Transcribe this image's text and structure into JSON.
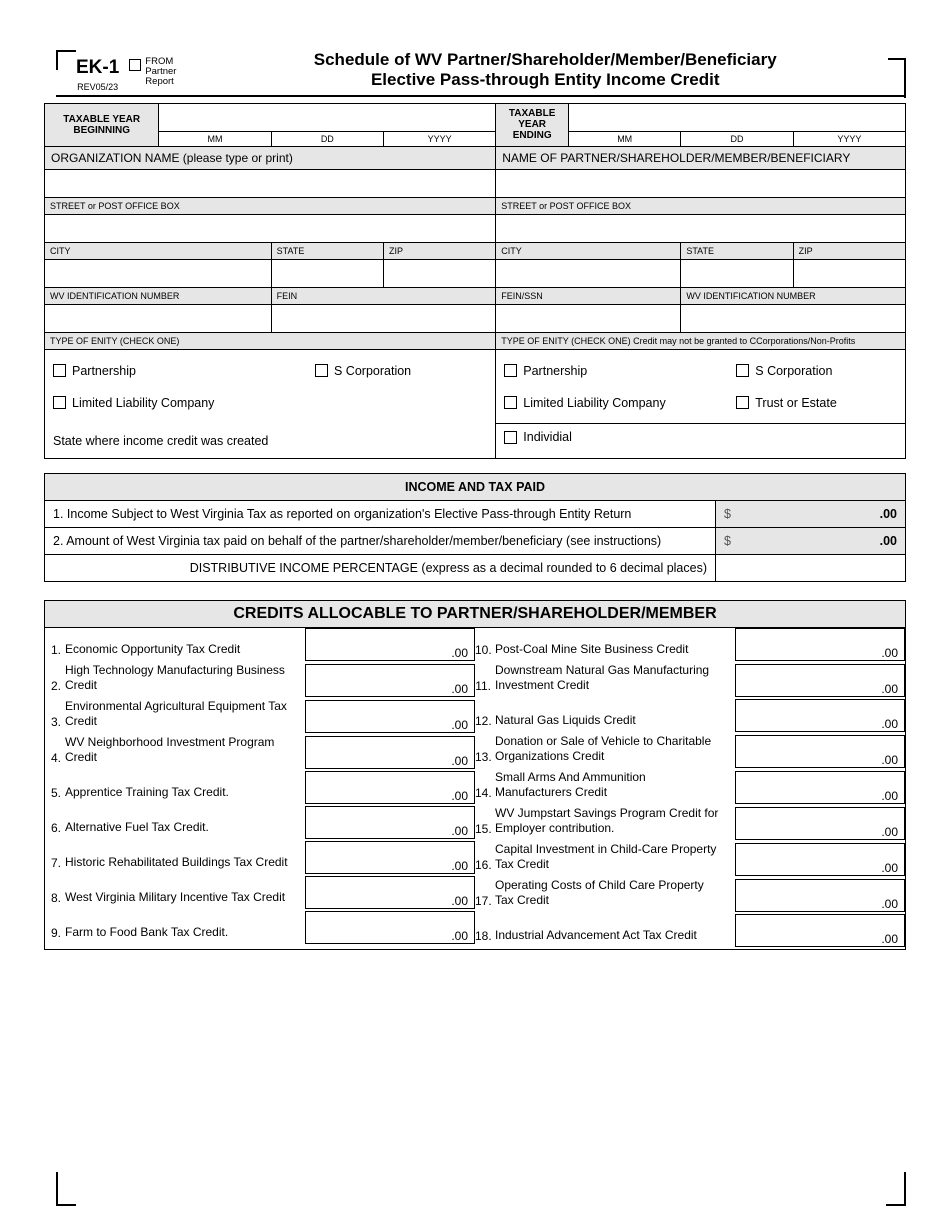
{
  "form": {
    "code": "EK-1",
    "rev": "REV05/23",
    "from": "FROM",
    "partner": "Partner",
    "report": "Report",
    "title1": "Schedule of WV Partner/Shareholder/Member/Beneficiary",
    "title2": "Elective Pass-through Entity Income Credit"
  },
  "datehdr": {
    "begin": "TAXABLE YEAR BEGINNING",
    "end": "TAXABLE YEAR ENDING",
    "mm": "MM",
    "dd": "DD",
    "yyyy": "YYYY"
  },
  "left": {
    "org": "ORGANIZATION NAME (please type or print)",
    "street": "STREET or POST OFFICE BOX",
    "city": "CITY",
    "state": "STATE",
    "zip": "ZIP",
    "wvid": "WV IDENTIFICATION NUMBER",
    "fein": "FEIN",
    "entity_hdr": "TYPE OF ENITY (CHECK ONE)",
    "opt1": "Partnership",
    "opt2": "S Corporation",
    "opt3": "Limited Liability Company",
    "state_income": "State where income credit was created"
  },
  "right": {
    "name": "NAME OF PARTNER/SHAREHOLDER/MEMBER/BENEFICIARY",
    "street": "STREET or POST OFFICE BOX",
    "city": "CITY",
    "state": "STATE",
    "zip": "ZIP",
    "feinssn": "FEIN/SSN",
    "wvid": "WV IDENTIFICATION NUMBER",
    "entity_hdr": "TYPE OF ENITY (CHECK ONE) Credit may not be granted to CCorporations/Non-Profits",
    "opt1": "Partnership",
    "opt2": "S Corporation",
    "opt3": "Limited Liability Company",
    "opt4": "Trust or Estate",
    "opt5": "Individial"
  },
  "income": {
    "hdr": "INCOME AND TAX PAID",
    "row1": "1. Income Subject to West Virginia Tax as reported on organization's Elective Pass-through Entity Return",
    "row2": "2. Amount of West Virginia tax paid on behalf of the partner/shareholder/member/beneficiary (see instructions)",
    "row3": "DISTRIBUTIVE INCOME PERCENTAGE (express as a decimal rounded to 6 decimal places)",
    "val": ".00",
    "dollar": "$"
  },
  "credits": {
    "hdr": "CREDITS ALLOCABLE TO PARTNER/SHAREHOLDER/MEMBER",
    "suffix": ".00",
    "left": [
      {
        "n": "1.",
        "t": "Economic Opportunity Tax Credit"
      },
      {
        "n": "2.",
        "t": "High Technology Manufacturing Business Credit"
      },
      {
        "n": "3.",
        "t": "Environmental Agricultural Equipment Tax Credit"
      },
      {
        "n": "4.",
        "t": "WV Neighborhood Investment Program Credit"
      },
      {
        "n": "5.",
        "t": "Apprentice Training Tax Credit."
      },
      {
        "n": "6.",
        "t": "Alternative Fuel Tax Credit."
      },
      {
        "n": "7.",
        "t": "Historic Rehabilitated Buildings Tax Credit"
      },
      {
        "n": "8.",
        "t": "West Virginia Military Incentive Tax Credit"
      },
      {
        "n": "9.",
        "t": "Farm to Food Bank Tax Credit."
      }
    ],
    "right": [
      {
        "n": "10.",
        "t": "Post-Coal Mine Site Business Credit"
      },
      {
        "n": "11.",
        "t": "Downstream Natural Gas Manufacturing Investment Credit"
      },
      {
        "n": "12.",
        "t": "Natural Gas Liquids Credit"
      },
      {
        "n": "13.",
        "t": "Donation or Sale of Vehicle to Charitable Organizations Credit"
      },
      {
        "n": "14.",
        "t": "Small Arms And Ammunition Manufacturers Credit"
      },
      {
        "n": "15.",
        "t": "WV Jumpstart Savings Program Credit for Employer contribution."
      },
      {
        "n": "16.",
        "t": "Capital Investment in Child-Care Property Tax Credit"
      },
      {
        "n": "17.",
        "t": "Operating Costs of Child Care Property Tax Credit"
      },
      {
        "n": "18.",
        "t": "Industrial Advancement Act Tax Credit"
      }
    ]
  }
}
